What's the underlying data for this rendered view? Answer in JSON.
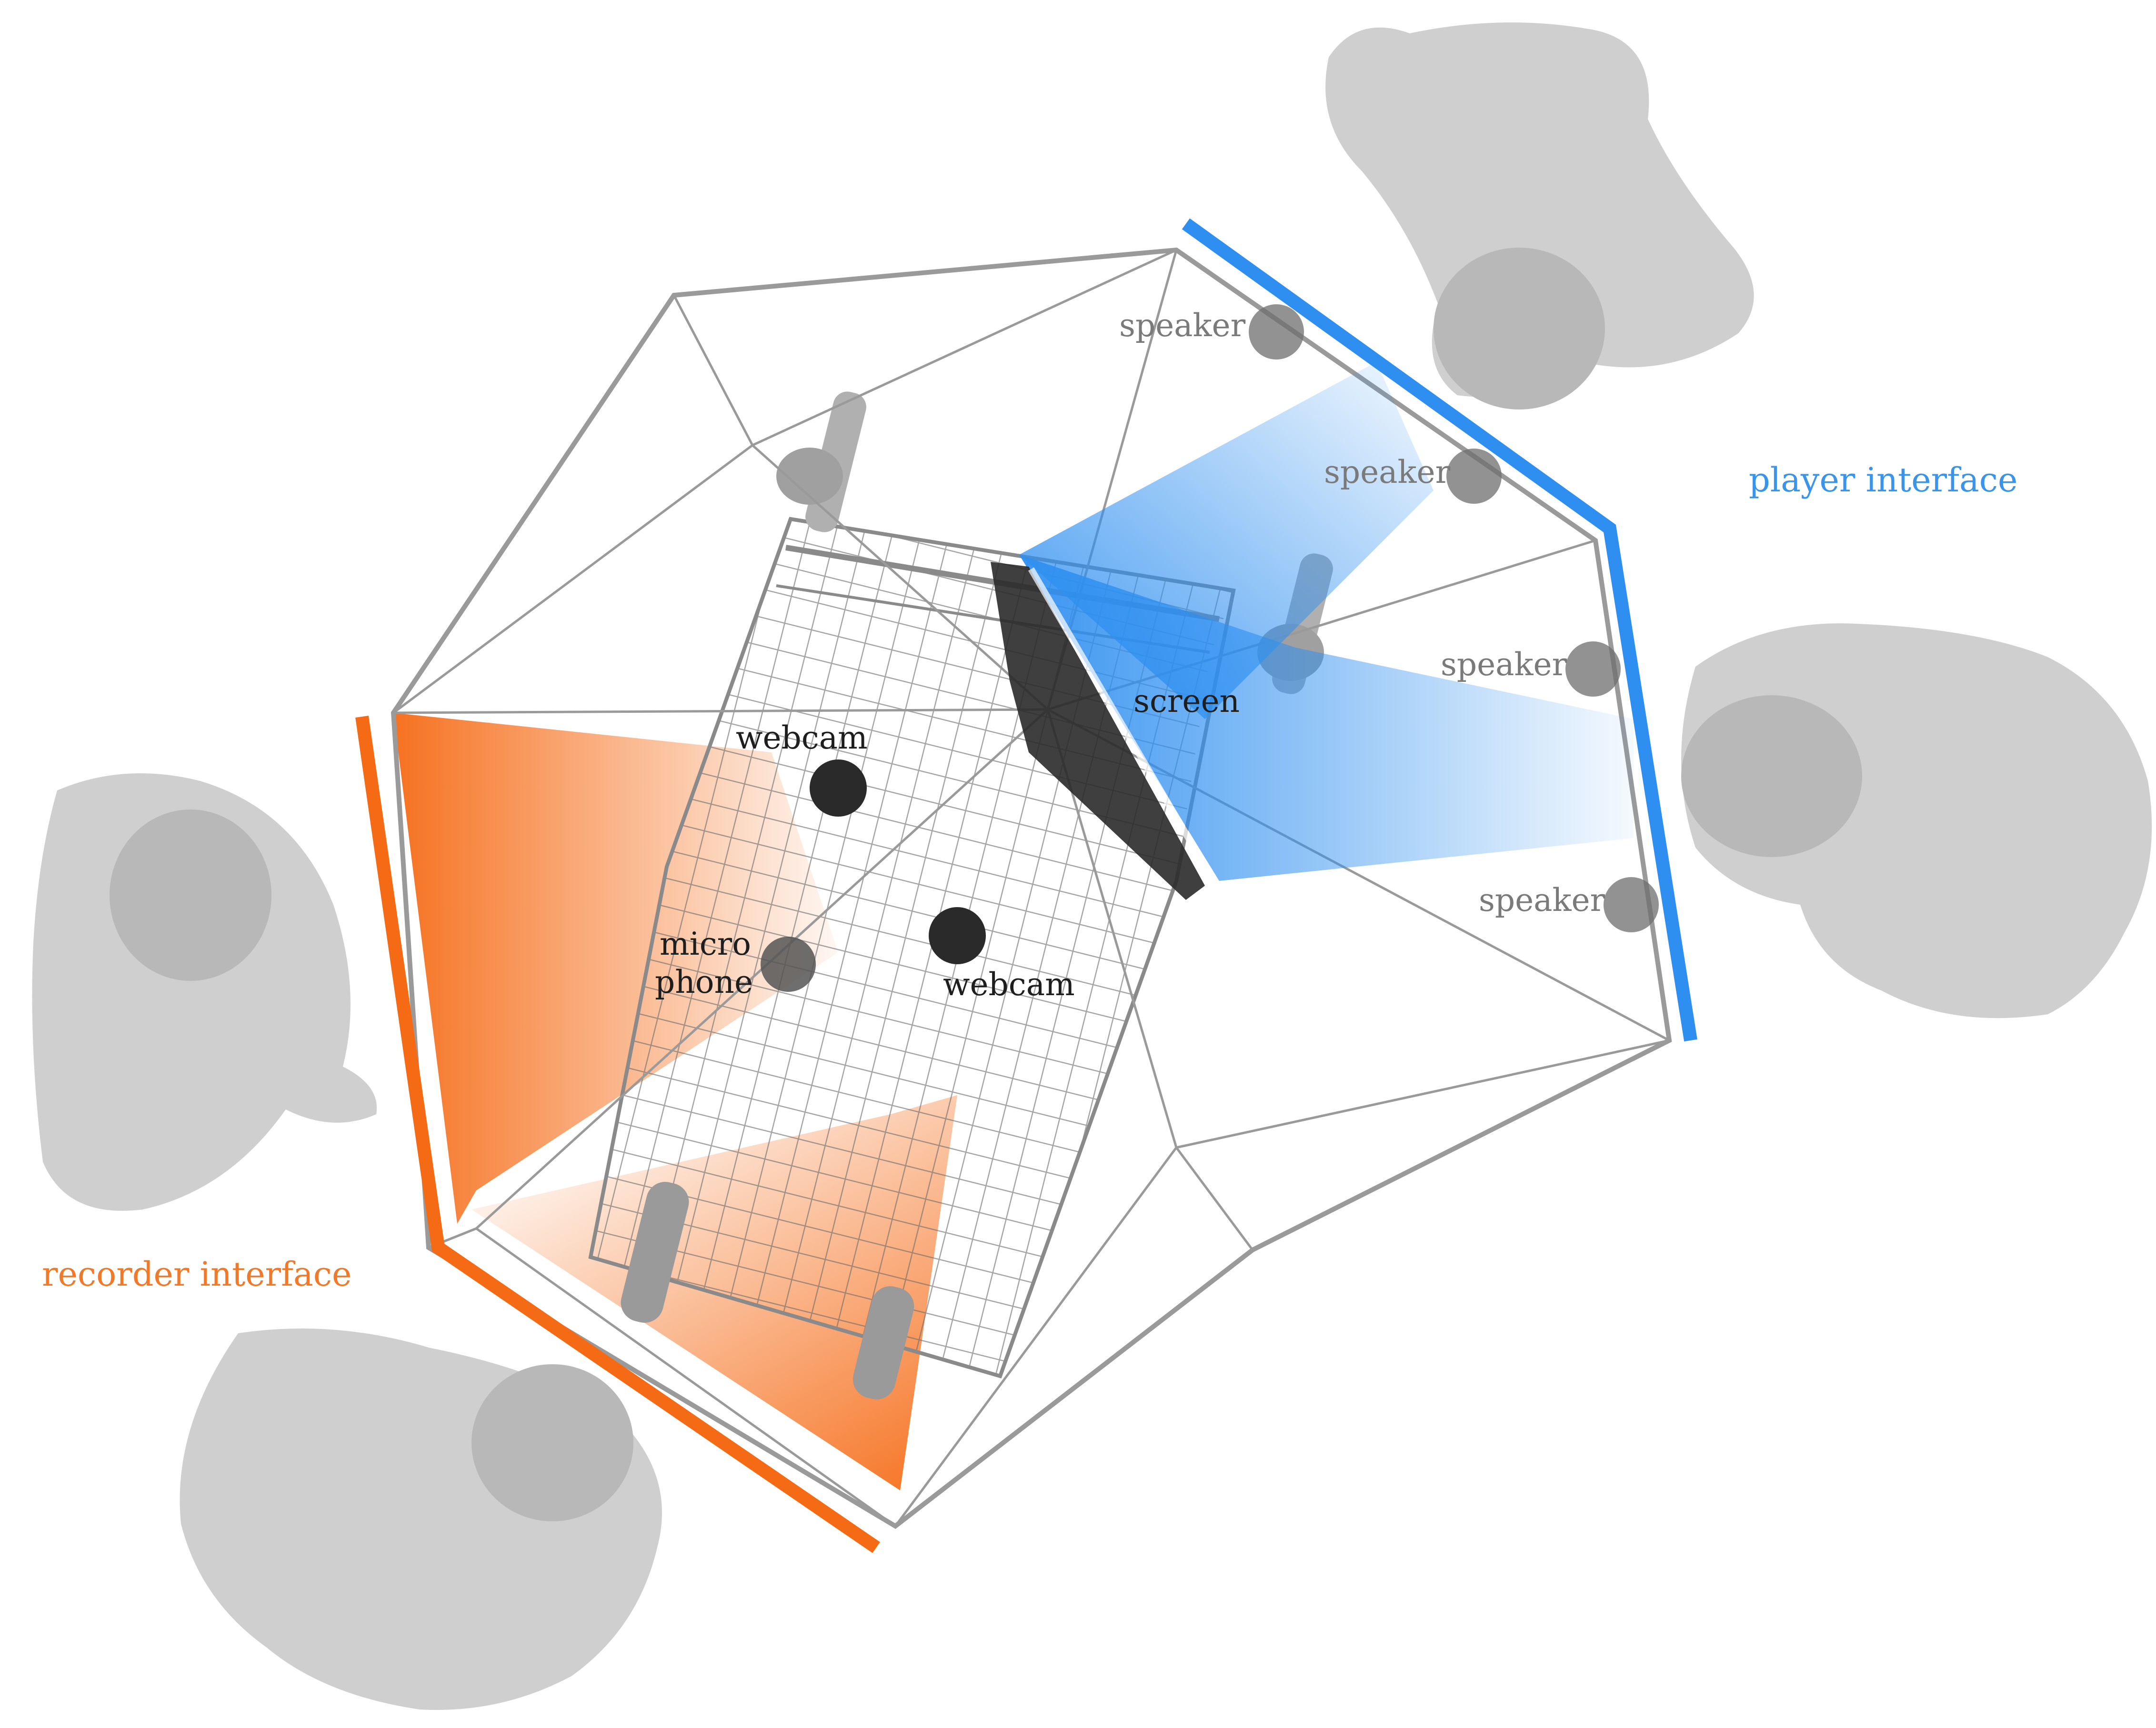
{
  "labels": {
    "speaker": "speaker",
    "screen": "screen",
    "webcam": "webcam",
    "micro": "micro",
    "phone": "phone",
    "player_interface": "player interface",
    "recorder_interface": "recorder interface"
  },
  "colors": {
    "player": "#2e8ff0",
    "recorder": "#f56a14",
    "frame": "#9a9a9a",
    "device_dark": "#2a2a2a",
    "device_gray": "#6e6e6e",
    "person": "#c8c8c8"
  },
  "icons": {
    "people": [
      "person-top-view-icon"
    ]
  }
}
